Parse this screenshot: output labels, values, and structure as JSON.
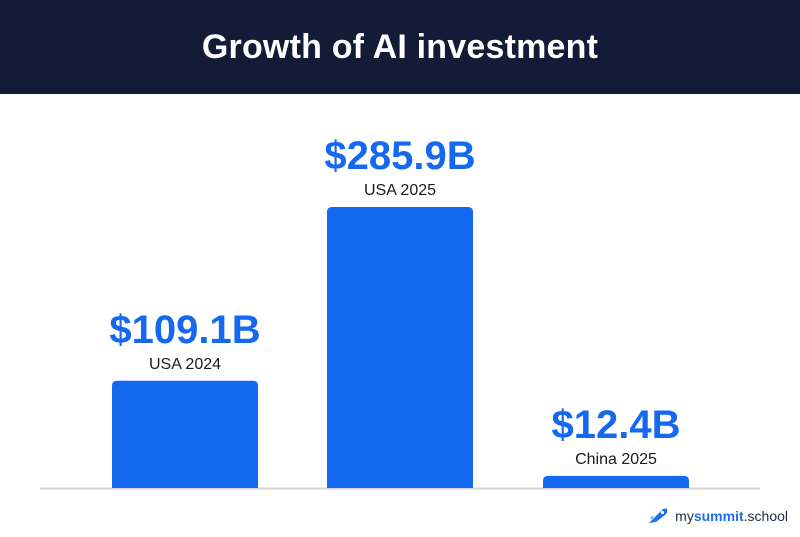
{
  "header": {
    "title": "Growth of AI investment"
  },
  "colors": {
    "bar": "#1568f0",
    "value_text": "#1568f0",
    "label_text": "#1a1a1a",
    "header_bg": "#131c36",
    "baseline": "#d6d6d6"
  },
  "chart_data": {
    "type": "bar",
    "title": "Growth of AI investment",
    "categories": [
      "USA 2024",
      "USA 2025",
      "China 2025"
    ],
    "values": [
      109.1,
      285.9,
      12.4
    ],
    "value_labels": [
      "$109.1B",
      "$285.9B",
      "$12.4B"
    ],
    "unit": "$B",
    "ylim": [
      0,
      285.9
    ],
    "grid": false,
    "legend": "none",
    "xlabel": "",
    "ylabel": ""
  },
  "brand": {
    "part1": "my",
    "part2": "summit",
    "part3": ".school",
    "icon": "rocket-icon"
  }
}
